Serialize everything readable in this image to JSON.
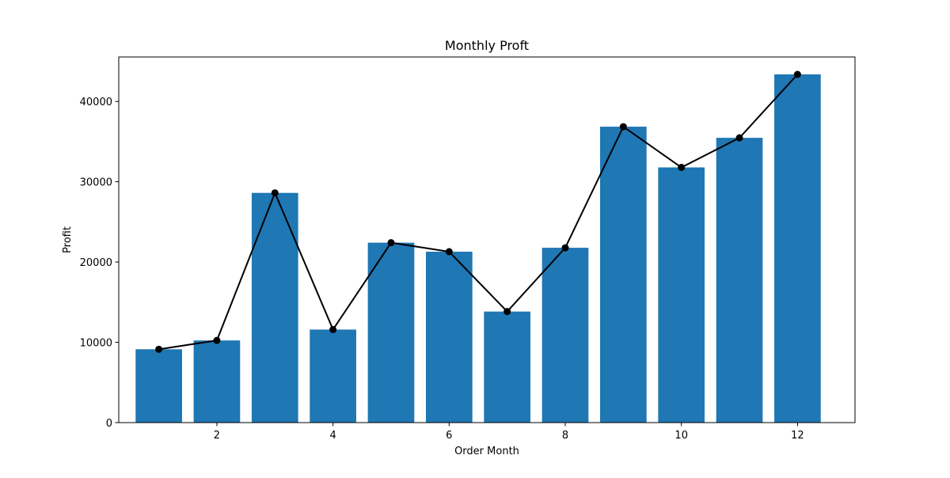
{
  "chart_data": {
    "type": "bar",
    "title": "Monthly Proft",
    "xlabel": "Order Month",
    "ylabel": "Profit",
    "x": [
      1,
      2,
      3,
      4,
      5,
      6,
      7,
      8,
      9,
      10,
      11,
      12
    ],
    "series": [
      {
        "type": "bar",
        "values": [
          9134,
          10234,
          28611,
          11588,
          22411,
          21285,
          13832,
          21776,
          36857,
          31784,
          35469,
          43369
        ],
        "color": "#1f77b4"
      },
      {
        "type": "line",
        "values": [
          9134,
          10234,
          28611,
          11588,
          22411,
          21285,
          13832,
          21776,
          36857,
          31784,
          35469,
          43369
        ],
        "color": "#000000",
        "marker": "circle"
      }
    ],
    "xlim": [
      0.31,
      12.99
    ],
    "ylim": [
      0,
      45538
    ],
    "xticks": [
      2,
      4,
      6,
      8,
      10,
      12
    ],
    "yticks": [
      0,
      10000,
      20000,
      30000,
      40000
    ],
    "grid": false,
    "legend": "none"
  }
}
